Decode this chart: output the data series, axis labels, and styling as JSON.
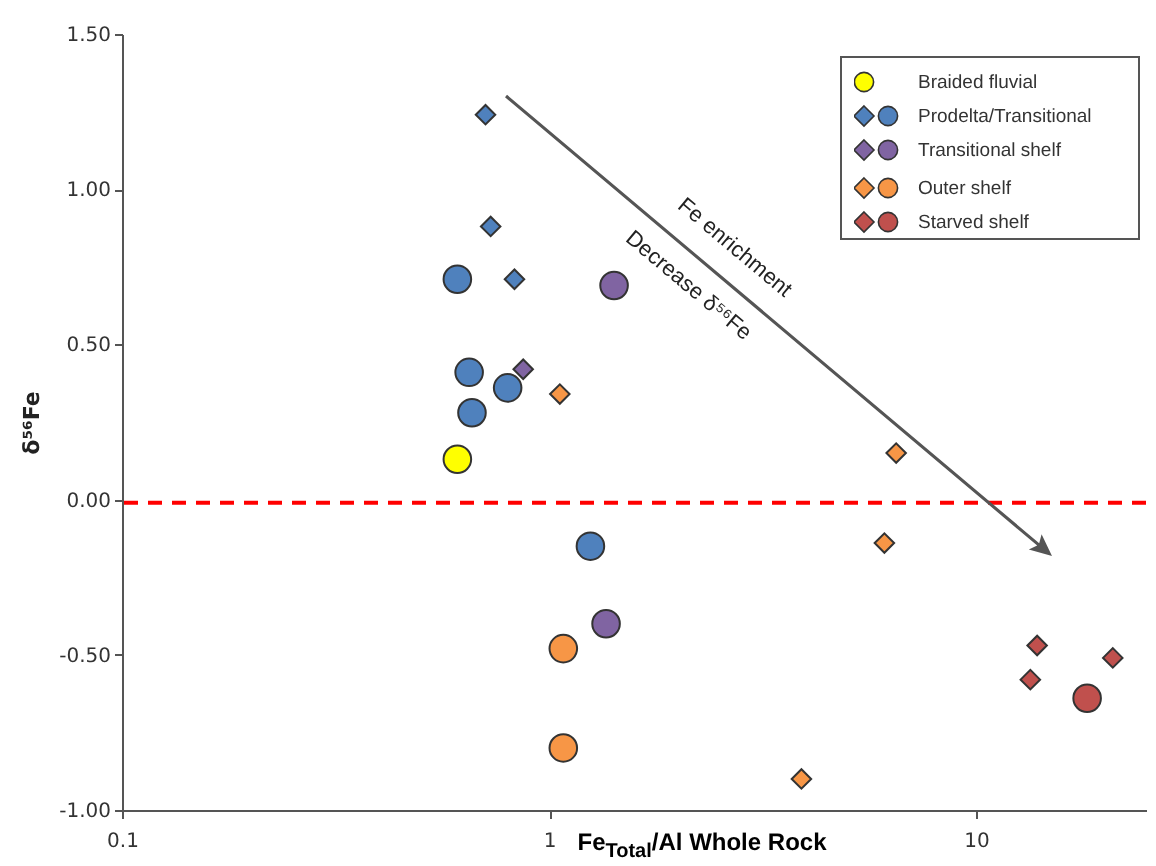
{
  "chart_data": {
    "type": "scatter",
    "xlabel": "Fe$_{Total}$/Al Whole Rock",
    "ylabel": "δ⁵⁶Fe",
    "log": "x",
    "grid": false,
    "legend": "top right",
    "xlim": [
      0.1,
      25
    ],
    "xticks": [
      0.1,
      1,
      10
    ],
    "ylim": [
      -1,
      1.5
    ],
    "yticks": [
      {
        "value": -1,
        "label": "-1.00"
      },
      {
        "value": -0.5,
        "label": "-0.50"
      },
      {
        "value": 0,
        "label": "0.00"
      },
      {
        "value": 0.5,
        "label": "0.50"
      },
      {
        "value": 1,
        "label": "1.00"
      },
      {
        "value": 1.5,
        "label": "1.50"
      }
    ],
    "series": [
      {
        "name": "Braided fluvial",
        "color": "#ffff00",
        "marker": "circle",
        "x": [
          0.61
        ],
        "values": [
          0.13
        ]
      },
      {
        "color": "#4f81bd",
        "marker": "diamond",
        "x": [
          0.71,
          0.73,
          0.83
        ],
        "values": [
          1.24,
          0.88,
          0.71
        ]
      },
      {
        "name": "Prodelta/Transitional",
        "color": "#4f81bd",
        "marker": "circle",
        "x": [
          0.61,
          0.65,
          0.8,
          0.66,
          1.25
        ],
        "values": [
          0.71,
          0.41,
          0.36,
          0.28,
          -0.15
        ]
      },
      {
        "color": "#8064a2",
        "marker": "diamond",
        "x": [
          0.87
        ],
        "values": [
          0.42
        ]
      },
      {
        "name": "Transitional shelf",
        "color": "#8064a2",
        "marker": "circle",
        "x": [
          1.42,
          1.36
        ],
        "values": [
          0.69,
          -0.4
        ]
      },
      {
        "color": "#f79646",
        "marker": "diamond",
        "x": [
          1.06,
          6.5,
          6.1,
          3.9
        ],
        "values": [
          0.34,
          0.15,
          -0.14,
          -0.9
        ]
      },
      {
        "name": "Outer shelf",
        "color": "#f79646",
        "marker": "circle",
        "x": [
          1.08,
          1.08
        ],
        "values": [
          -0.48,
          -0.8
        ]
      },
      {
        "color": "#c0504d",
        "marker": "diamond",
        "x": [
          13.9,
          13.4,
          20.9
        ],
        "values": [
          -0.47,
          -0.58,
          -0.51
        ]
      },
      {
        "name": "Starved shelf",
        "color": "#c0504d",
        "marker": "circle",
        "x": [
          18.2
        ],
        "values": [
          -0.64
        ]
      }
    ],
    "ref_lines": [
      {
        "axis": "y",
        "value": -0.01,
        "color": "#ff0000",
        "line_style": "dashed"
      }
    ],
    "annotations": [
      "Fe enrichment",
      "Decrease δ⁵⁶Fe"
    ]
  }
}
